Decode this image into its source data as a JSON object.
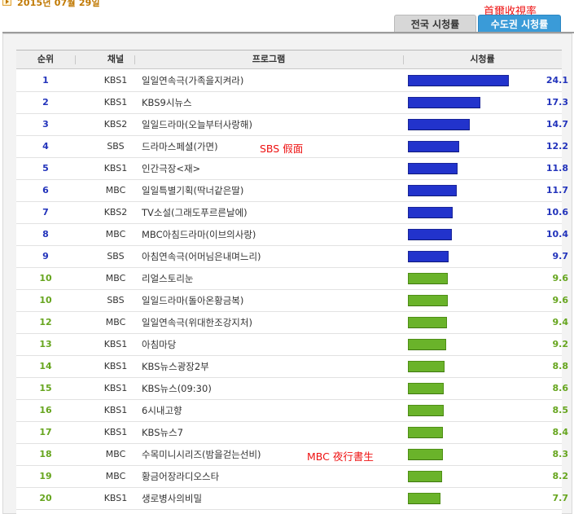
{
  "header": {
    "date": "2015년 07월 29일",
    "annotation": "首爾收視率"
  },
  "tabs": [
    {
      "label": "전국 시청률",
      "active": false
    },
    {
      "label": "수도권 시청률",
      "active": true
    }
  ],
  "table": {
    "columns": [
      "순위",
      "채널",
      "프로그램",
      "시청률"
    ],
    "max_rating": 24.1,
    "rows": [
      {
        "rank": "1",
        "channel": "KBS1",
        "program": "일일연속극(가족을지켜라)",
        "rating": 24.1,
        "color": "blue"
      },
      {
        "rank": "2",
        "channel": "KBS1",
        "program": "KBS9시뉴스",
        "rating": 17.3,
        "color": "blue"
      },
      {
        "rank": "3",
        "channel": "KBS2",
        "program": "일일드라마(오늘부터사랑해)",
        "rating": 14.7,
        "color": "blue"
      },
      {
        "rank": "4",
        "channel": "SBS",
        "program": "드라마스페셜(가면)",
        "rating": 12.2,
        "color": "blue",
        "note": "SBS 假面"
      },
      {
        "rank": "5",
        "channel": "KBS1",
        "program": "인간극장<재>",
        "rating": 11.8,
        "color": "blue"
      },
      {
        "rank": "6",
        "channel": "MBC",
        "program": "일일특별기획(딱너같은딸)",
        "rating": 11.7,
        "color": "blue"
      },
      {
        "rank": "7",
        "channel": "KBS2",
        "program": "TV소설(그래도푸르른날에)",
        "rating": 10.6,
        "color": "blue"
      },
      {
        "rank": "8",
        "channel": "MBC",
        "program": "MBC아침드라마(이브의사랑)",
        "rating": 10.4,
        "color": "blue"
      },
      {
        "rank": "9",
        "channel": "SBS",
        "program": "아침연속극(어머님은내며느리)",
        "rating": 9.7,
        "color": "blue"
      },
      {
        "rank": "10",
        "channel": "MBC",
        "program": "리얼스토리눈",
        "rating": 9.6,
        "color": "green"
      },
      {
        "rank": "10",
        "channel": "SBS",
        "program": "일일드라마(돌아온황금복)",
        "rating": 9.6,
        "color": "green"
      },
      {
        "rank": "12",
        "channel": "MBC",
        "program": "일일연속극(위대한조강지처)",
        "rating": 9.4,
        "color": "green"
      },
      {
        "rank": "13",
        "channel": "KBS1",
        "program": "아침마당",
        "rating": 9.2,
        "color": "green"
      },
      {
        "rank": "14",
        "channel": "KBS1",
        "program": "KBS뉴스광장2부",
        "rating": 8.8,
        "color": "green"
      },
      {
        "rank": "15",
        "channel": "KBS1",
        "program": "KBS뉴스(09:30)",
        "rating": 8.6,
        "color": "green"
      },
      {
        "rank": "16",
        "channel": "KBS1",
        "program": "6시내고향",
        "rating": 8.5,
        "color": "green"
      },
      {
        "rank": "17",
        "channel": "KBS1",
        "program": "KBS뉴스7",
        "rating": 8.4,
        "color": "green"
      },
      {
        "rank": "18",
        "channel": "MBC",
        "program": "수목미니시리즈(밤을걷는선비)",
        "rating": 8.3,
        "color": "green",
        "note": "MBC 夜行書生"
      },
      {
        "rank": "19",
        "channel": "MBC",
        "program": "황금어장라디오스타",
        "rating": 8.2,
        "color": "green"
      },
      {
        "rank": "20",
        "channel": "KBS1",
        "program": "생로병사의비밀",
        "rating": 7.7,
        "color": "green"
      }
    ]
  }
}
